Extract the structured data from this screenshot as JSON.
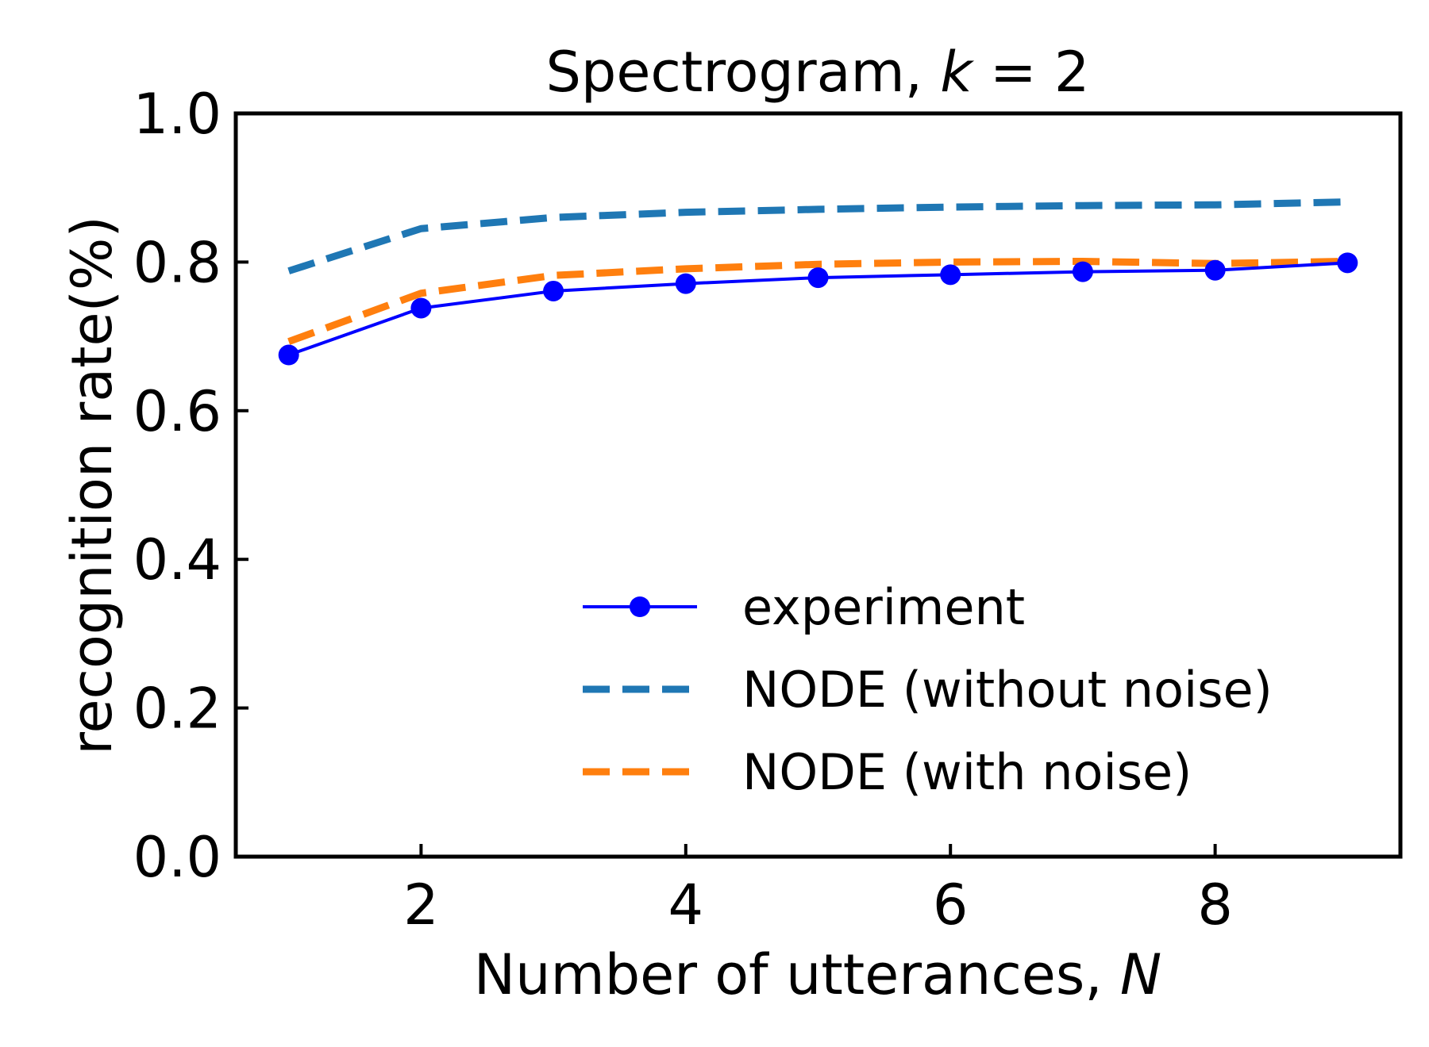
{
  "chart_data": {
    "type": "line",
    "title": "Spectrogram, ",
    "title_var": "k",
    "title_eq": " = 2",
    "xlabel": "Number of utterances, ",
    "xlabel_var": "N",
    "ylabel": "recognition rate(%)",
    "xlim": [
      0.6,
      9.4
    ],
    "ylim": [
      0.0,
      1.0
    ],
    "x_ticks": [
      2,
      4,
      6,
      8
    ],
    "x_tick_labels": [
      "2",
      "4",
      "6",
      "8"
    ],
    "y_ticks": [
      0.0,
      0.2,
      0.4,
      0.6,
      0.8,
      1.0
    ],
    "y_tick_labels": [
      "0.0",
      "0.2",
      "0.4",
      "0.6",
      "0.8",
      "1.0"
    ],
    "grid": false,
    "legend_position": "lower-right",
    "x": [
      1,
      2,
      3,
      4,
      5,
      6,
      7,
      8,
      9
    ],
    "series": [
      {
        "name": "experiment",
        "style": "solid-marker",
        "color": "#0000ff",
        "values": [
          0.675,
          0.738,
          0.761,
          0.771,
          0.779,
          0.783,
          0.787,
          0.789,
          0.799
        ]
      },
      {
        "name": "NODE (without noise)",
        "style": "dashed",
        "color": "#1f77b4",
        "values": [
          0.788,
          0.845,
          0.86,
          0.867,
          0.871,
          0.874,
          0.876,
          0.877,
          0.881
        ]
      },
      {
        "name": "NODE (with noise)",
        "style": "dashed",
        "color": "#ff7f0e",
        "values": [
          0.693,
          0.758,
          0.782,
          0.791,
          0.797,
          0.8,
          0.801,
          0.798,
          0.801
        ]
      }
    ]
  }
}
